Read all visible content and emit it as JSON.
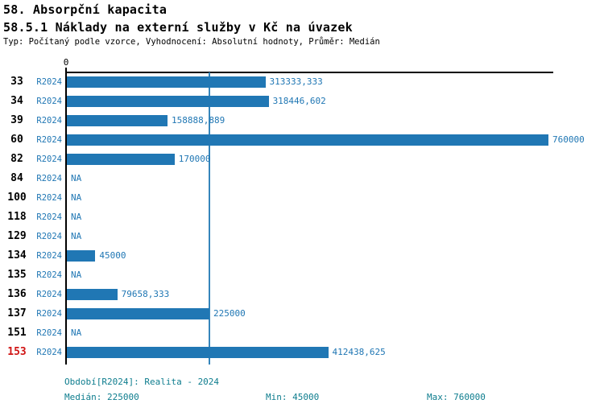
{
  "header": {
    "title1": "58. Absorpční kapacita",
    "title2": "58.5.1 Náklady na externí služby v Kč na úvazek",
    "subtitle": "Typ: Počítaný podle vzorce, Vyhodnocení: Absolutní hodnoty, Průměr: Medián"
  },
  "chart_data": {
    "type": "bar",
    "orientation": "horizontal",
    "title": "58.5.1 Náklady na externí služby v Kč na úvazek",
    "axis_zero_label": "0",
    "series_name": "R2024",
    "categories": [
      "33",
      "34",
      "39",
      "60",
      "82",
      "84",
      "100",
      "118",
      "129",
      "134",
      "135",
      "136",
      "137",
      "151",
      "153"
    ],
    "values": [
      313333.333,
      318446.602,
      158888.889,
      760000,
      170000,
      null,
      null,
      null,
      null,
      45000,
      null,
      79658.333,
      225000,
      null,
      412438.625
    ],
    "value_labels": [
      "313333,333",
      "318446,602",
      "158888,889",
      "760000",
      "170000",
      "NA",
      "NA",
      "NA",
      "NA",
      "45000",
      "NA",
      "79658,333",
      "225000",
      "NA",
      "412438,625"
    ],
    "na_label": "NA",
    "highlighted_category": "153",
    "xlim": [
      0,
      760000
    ],
    "median_reference_line": 225000,
    "legend_position": "none",
    "grid": false
  },
  "footer": {
    "period": "Období[R2024]: Realita - 2024",
    "median": "Medián: 225000",
    "min": "Min: 45000",
    "max": "Max: 760000"
  },
  "colors": {
    "bar": "#2077b4",
    "blue_text": "#2077b4",
    "median_line": "#3585bb",
    "footer_text": "#0e7d8e",
    "highlight_red": "#d01414",
    "axis": "#000000"
  }
}
